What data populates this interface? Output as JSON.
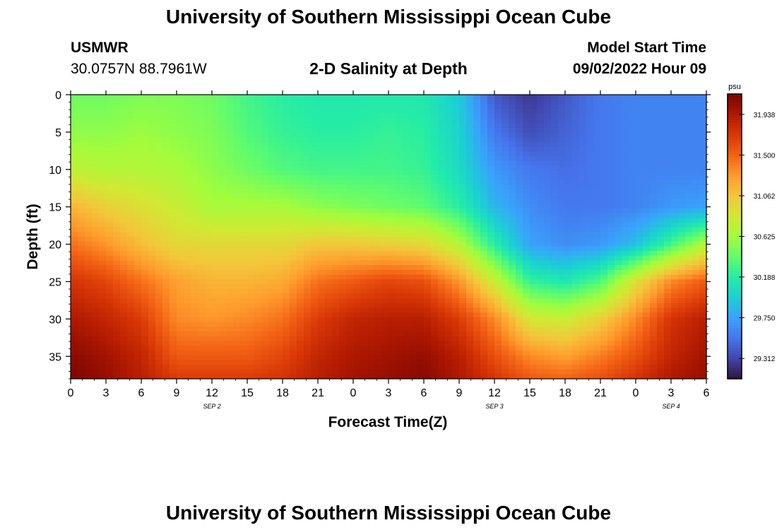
{
  "header": {
    "title": "University of Southern Mississippi Ocean Cube",
    "station": "USMWR",
    "coordinates": "30.0757N  88.7961W",
    "plot_title": "2-D Salinity at Depth",
    "model_label": "Model Start Time",
    "model_time": "09/02/2022 Hour 09"
  },
  "footer": {
    "title": "University of Southern Mississippi Ocean Cube"
  },
  "chart_data": {
    "type": "heatmap",
    "title": "2-D Salinity at Depth",
    "xlabel": "Forecast Time(Z)",
    "ylabel": "Depth (ft)",
    "x_tick_labels": [
      "0",
      "3",
      "6",
      "9",
      "12",
      "15",
      "18",
      "21",
      "0",
      "3",
      "6",
      "9",
      "12",
      "15",
      "18",
      "21",
      "0",
      "3",
      "6"
    ],
    "x_hours_since_start": [
      0,
      3,
      6,
      9,
      12,
      15,
      18,
      21,
      24,
      27,
      30,
      33,
      36,
      39,
      42,
      45,
      48,
      51,
      54
    ],
    "date_labels": [
      {
        "label": "SEP 2",
        "hour": 12
      },
      {
        "label": "SEP 3",
        "hour": 36
      },
      {
        "label": "SEP 4",
        "hour": 51
      }
    ],
    "ylim": [
      0,
      38
    ],
    "y_ticks": [
      0,
      5,
      10,
      15,
      20,
      25,
      30,
      35
    ],
    "colorbar": {
      "unit": "psu",
      "range": [
        29.093,
        32.157
      ],
      "ticks": [
        29.312,
        29.75,
        30.188,
        30.625,
        31.062,
        31.5,
        31.938
      ],
      "colors": [
        "#30123b",
        "#4145ab",
        "#4675ed",
        "#39a2fc",
        "#1bcfd4",
        "#24eca6",
        "#61fc6c",
        "#a4fc3b",
        "#d1e834",
        "#f3c63a",
        "#fe9b2d",
        "#f36315",
        "#d93806",
        "#b11901",
        "#7a0402"
      ]
    },
    "salinity_grid": {
      "times_hours": [
        0,
        3,
        6,
        9,
        12,
        15,
        18,
        21,
        24,
        27,
        30,
        33,
        36,
        39,
        42,
        45,
        48,
        51,
        54
      ],
      "depths_ft": [
        0,
        5,
        10,
        15,
        20,
        25,
        30,
        35,
        38
      ],
      "values": [
        [
          30.45,
          30.45,
          30.5,
          30.5,
          30.45,
          30.3,
          30.2,
          30.15,
          30.15,
          30.15,
          30.15,
          29.95,
          29.4,
          29.25,
          29.4,
          29.55,
          29.6,
          29.6,
          29.6
        ],
        [
          30.55,
          30.55,
          30.6,
          30.55,
          30.5,
          30.35,
          30.25,
          30.2,
          30.2,
          30.25,
          30.2,
          30.0,
          29.55,
          29.35,
          29.45,
          29.55,
          29.6,
          29.6,
          29.6
        ],
        [
          30.75,
          30.7,
          30.7,
          30.65,
          30.55,
          30.45,
          30.35,
          30.3,
          30.3,
          30.3,
          30.25,
          30.05,
          29.7,
          29.55,
          29.5,
          29.55,
          29.6,
          29.6,
          29.6
        ],
        [
          31.15,
          31.0,
          30.9,
          30.8,
          30.65,
          30.65,
          30.65,
          30.55,
          30.5,
          30.45,
          30.4,
          30.2,
          29.85,
          29.65,
          29.55,
          29.55,
          29.6,
          29.7,
          29.75
        ],
        [
          31.45,
          31.3,
          31.1,
          30.95,
          30.95,
          30.95,
          30.95,
          31.05,
          31.05,
          31.0,
          30.95,
          30.7,
          30.2,
          29.75,
          29.65,
          29.7,
          29.9,
          30.3,
          30.7
        ],
        [
          31.75,
          31.65,
          31.45,
          31.25,
          31.15,
          31.15,
          31.2,
          31.45,
          31.55,
          31.65,
          31.6,
          31.3,
          30.8,
          30.25,
          30.15,
          30.35,
          30.9,
          31.35,
          31.55
        ],
        [
          31.95,
          31.85,
          31.7,
          31.35,
          31.3,
          31.35,
          31.45,
          31.7,
          31.85,
          31.9,
          31.9,
          31.7,
          31.35,
          30.85,
          30.8,
          31.0,
          31.35,
          31.75,
          31.9
        ],
        [
          32.1,
          32.0,
          31.85,
          31.55,
          31.55,
          31.55,
          31.65,
          31.85,
          31.95,
          32.0,
          32.05,
          31.9,
          31.6,
          31.35,
          31.25,
          31.4,
          31.6,
          31.85,
          32.0
        ],
        [
          32.15,
          32.05,
          31.9,
          31.7,
          31.7,
          31.7,
          31.75,
          31.9,
          32.0,
          32.05,
          32.1,
          31.95,
          31.75,
          31.55,
          31.5,
          31.6,
          31.75,
          31.95,
          32.05
        ]
      ]
    }
  }
}
